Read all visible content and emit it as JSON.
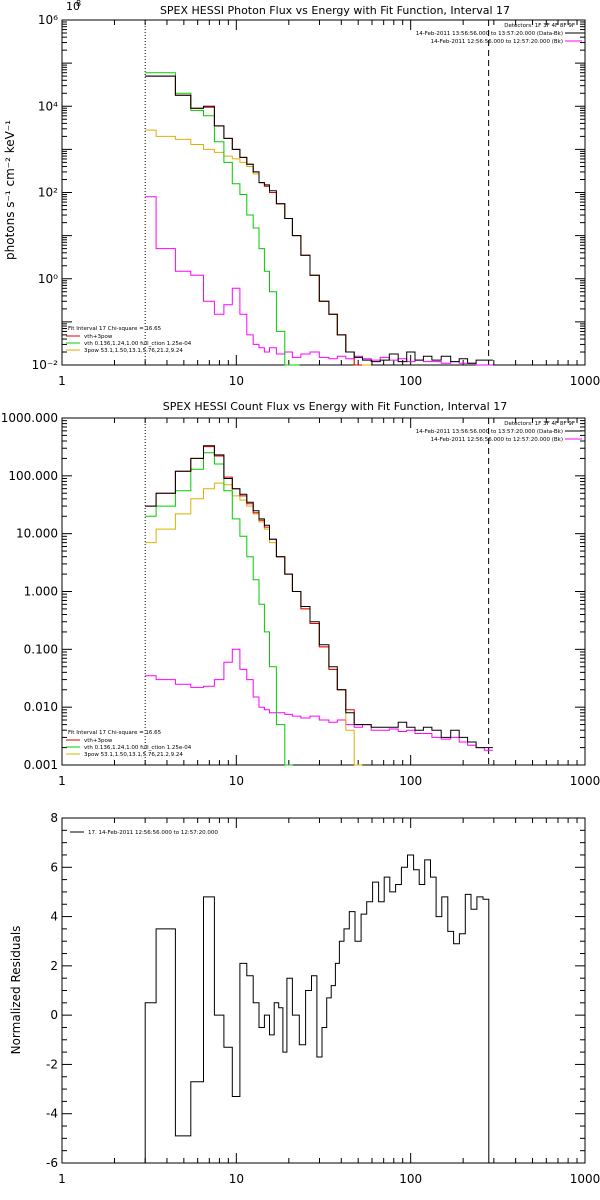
{
  "chart_data": [
    {
      "type": "line",
      "title": "SPEX HESSI Photon Flux vs Energy with Fit Function, Interval 17",
      "xlabel": "",
      "ylabel": "photons s⁻¹ cm⁻² keV⁻¹",
      "xscale": "log",
      "yscale": "log",
      "xlim": [
        1,
        1000
      ],
      "ylim": [
        0.01,
        1000000
      ],
      "xtick_labels": [
        "1",
        "10",
        "100",
        "1000"
      ],
      "ytick_values": [
        0.01,
        1,
        100,
        10000,
        1000000
      ],
      "ytick_labels": [
        "10⁻²",
        "10⁰",
        "10²",
        "10⁴",
        "10⁶"
      ],
      "vlines": [
        {
          "x": 3,
          "style": "dotted"
        },
        {
          "x": 280,
          "style": "dashed"
        }
      ],
      "header": [
        {
          "text": "Detectors: 1F 3F 4F 8F 9F",
          "color": "#000000"
        },
        {
          "text": "14-Feb-2011 13:56:56.000 to 13:57:20.000 (Data-Bk)",
          "color": "#000000"
        },
        {
          "text": "14-Feb-2011 12:56:56.000 to 12:57:20.000 (Bk)",
          "color": "#ff00ff"
        }
      ],
      "legend_title": "Fit Interval 17   Chi-square = 16.65",
      "legend": [
        {
          "text": "vth+3pow",
          "color": "#dd0000"
        },
        {
          "text": "vth 0.136,1.24,1.00  full_ction 1.25e-04",
          "color": "#00cc00"
        },
        {
          "text": "3pow 53.1,1.50,13.1,5.76,21.2,9.24",
          "color": "#e0b000"
        }
      ],
      "series": [
        {
          "name": "Data-Bk",
          "color": "#000000",
          "x": [
            3,
            4,
            5,
            6,
            7,
            8,
            9,
            10,
            11,
            12,
            13,
            14,
            15,
            16,
            18,
            20,
            22,
            25,
            28,
            32,
            36,
            40,
            45,
            50,
            56,
            63,
            71,
            80,
            90,
            100,
            112,
            125,
            140,
            160,
            180,
            200,
            225,
            250,
            280
          ],
          "y": [
            50000,
            50000,
            18000,
            9000,
            10000,
            3500,
            1800,
            1000,
            650,
            450,
            300,
            170,
            150,
            110,
            55,
            25,
            10,
            3.5,
            1.2,
            0.3,
            0.15,
            0.05,
            0.02,
            0.015,
            0.013,
            0.012,
            0.013,
            0.018,
            0.012,
            0.02,
            0.013,
            0.016,
            0.013,
            0.016,
            0.012,
            0.014,
            0.011,
            0.013,
            0.013
          ]
        },
        {
          "name": "vth+3pow",
          "color": "#dd0000",
          "x": [
            3,
            4,
            5,
            6,
            7,
            8,
            9,
            10,
            11,
            12,
            13,
            14,
            15,
            16,
            18,
            20,
            22,
            25,
            28,
            32,
            36,
            40,
            45,
            50
          ],
          "y": [
            50000,
            50000,
            18000,
            9000,
            9500,
            3500,
            1800,
            1000,
            650,
            450,
            300,
            170,
            140,
            100,
            55,
            25,
            10,
            3.5,
            1.2,
            0.3,
            0.15,
            0.05,
            0.02,
            0.01
          ]
        },
        {
          "name": "vth",
          "color": "#00cc00",
          "x": [
            3,
            4,
            5,
            6,
            7,
            8,
            9,
            10,
            11,
            12,
            13,
            14,
            15,
            16,
            18,
            20,
            22
          ],
          "y": [
            60000,
            60000,
            20000,
            8000,
            6000,
            1500,
            500,
            160,
            90,
            30,
            15,
            5,
            1.5,
            0.5,
            0.06,
            0.01,
            0.01
          ]
        },
        {
          "name": "3pow",
          "color": "#e0b000",
          "x": [
            3,
            4,
            5,
            6,
            7,
            8,
            9,
            10,
            11,
            12,
            13,
            14,
            15,
            16,
            18,
            20,
            22,
            25,
            28,
            32,
            36,
            40,
            45,
            50,
            56
          ],
          "y": [
            2800,
            2000,
            1700,
            1300,
            1000,
            850,
            700,
            600,
            500,
            400,
            270,
            170,
            140,
            100,
            55,
            25,
            10,
            3.5,
            1.2,
            0.3,
            0.15,
            0.05,
            0.02,
            0.01,
            0.01
          ]
        },
        {
          "name": "Bk",
          "color": "#ff00ff",
          "x": [
            3,
            4,
            5,
            6,
            7,
            8,
            9,
            10,
            11,
            12,
            13,
            14,
            15,
            16,
            18,
            20,
            22,
            25,
            28,
            32,
            36,
            40,
            45,
            50,
            56,
            63,
            71,
            80,
            90,
            100,
            112,
            125,
            140,
            160,
            180,
            200,
            225,
            250,
            280
          ],
          "y": [
            80,
            5,
            1.5,
            1.2,
            0.3,
            0.15,
            0.25,
            0.6,
            0.15,
            0.05,
            0.03,
            0.025,
            0.02,
            0.025,
            0.018,
            0.02,
            0.015,
            0.018,
            0.02,
            0.015,
            0.014,
            0.016,
            0.014,
            0.016,
            0.014,
            0.013,
            0.015,
            0.013,
            0.014,
            0.012,
            0.013,
            0.012,
            0.012,
            0.011,
            0.012,
            0.011,
            0.011,
            0.01,
            0.01
          ]
        }
      ]
    },
    {
      "type": "line",
      "title": "SPEX HESSI Count Flux vs Energy with Fit Function, Interval 17",
      "xlabel": "",
      "ylabel": "",
      "xscale": "log",
      "yscale": "log",
      "xlim": [
        1,
        1000
      ],
      "ylim": [
        0.001,
        1000
      ],
      "xtick_labels": [
        "1",
        "10",
        "100",
        "1000"
      ],
      "ytick_values": [
        0.001,
        0.01,
        0.1,
        1,
        10,
        100,
        1000
      ],
      "ytick_labels": [
        "0.001",
        "0.010",
        "0.100",
        "1.000",
        "10.000",
        "100.000",
        "1000.000"
      ],
      "vlines": [
        {
          "x": 3,
          "style": "dotted"
        },
        {
          "x": 280,
          "style": "dashed"
        }
      ],
      "header": [
        {
          "text": "Detectors: 1F 3F 4F 8F 9F",
          "color": "#000000"
        },
        {
          "text": "14-Feb-2011 13:56:56.000 to 13:57:20.000 (Data-Bk)",
          "color": "#000000"
        },
        {
          "text": "14-Feb-2011 12:56:56.000 to 12:57:20.000 (Bk)",
          "color": "#ff00ff"
        }
      ],
      "legend_title": "Fit Interval 17   Chi-square = 16.65",
      "legend": [
        {
          "text": "vth+3pow",
          "color": "#dd0000"
        },
        {
          "text": "vth 0.136,1.24,1.00  full_ction 1.25e-04",
          "color": "#00cc00"
        },
        {
          "text": "3pow 53.1,1.50,13.1,5.76,21.2,9.24",
          "color": "#e0b000"
        }
      ],
      "series": [
        {
          "name": "Data-Bk",
          "color": "#000000",
          "x": [
            3,
            4,
            5,
            6,
            7,
            8,
            9,
            10,
            11,
            12,
            13,
            14,
            15,
            16,
            18,
            20,
            22,
            25,
            28,
            32,
            36,
            40,
            45,
            50,
            56,
            63,
            71,
            80,
            90,
            100,
            112,
            125,
            140,
            160,
            180,
            200,
            225,
            250,
            280
          ],
          "y": [
            30,
            50,
            120,
            200,
            330,
            230,
            90,
            60,
            48,
            35,
            25,
            18,
            14,
            8,
            4,
            2,
            1,
            0.55,
            0.3,
            0.12,
            0.05,
            0.02,
            0.008,
            0.005,
            0.005,
            0.0045,
            0.0045,
            0.0045,
            0.0055,
            0.0045,
            0.004,
            0.0045,
            0.004,
            0.003,
            0.004,
            0.003,
            0.0025,
            0.002,
            0.002
          ]
        },
        {
          "name": "vth+3pow",
          "color": "#dd0000",
          "x": [
            3,
            4,
            5,
            6,
            7,
            8,
            9,
            10,
            11,
            12,
            13,
            14,
            15,
            16,
            18,
            20,
            22,
            25,
            28,
            32,
            36,
            40,
            45,
            50
          ],
          "y": [
            30,
            50,
            120,
            200,
            320,
            220,
            95,
            60,
            45,
            33,
            23,
            17,
            13,
            8,
            4,
            2,
            1,
            0.5,
            0.28,
            0.11,
            0.045,
            0.02,
            0.009,
            0.005
          ]
        },
        {
          "name": "vth",
          "color": "#00cc00",
          "x": [
            3,
            4,
            5,
            6,
            7,
            8,
            9,
            10,
            11,
            12,
            13,
            14,
            15,
            16,
            18,
            20
          ],
          "y": [
            20,
            30,
            55,
            130,
            250,
            160,
            55,
            18,
            9,
            4,
            1.6,
            0.6,
            0.2,
            0.05,
            0.005,
            0.001
          ]
        },
        {
          "name": "3pow",
          "color": "#e0b000",
          "x": [
            3,
            4,
            5,
            6,
            7,
            8,
            9,
            10,
            11,
            12,
            13,
            14,
            15,
            16,
            18,
            20,
            22,
            25,
            28,
            32,
            36,
            40,
            45,
            50
          ],
          "y": [
            7,
            12,
            22,
            40,
            60,
            75,
            70,
            45,
            38,
            30,
            22,
            16,
            12,
            7,
            4,
            2,
            1,
            0.5,
            0.28,
            0.11,
            0.045,
            0.02,
            0.004,
            0.001
          ]
        },
        {
          "name": "Bk",
          "color": "#ff00ff",
          "x": [
            3,
            4,
            5,
            6,
            7,
            8,
            9,
            10,
            11,
            12,
            13,
            14,
            15,
            16,
            18,
            20,
            22,
            25,
            28,
            32,
            36,
            40,
            45,
            50,
            56,
            63,
            71,
            80,
            90,
            100,
            112,
            125,
            140,
            160,
            180,
            200,
            225,
            250,
            280
          ],
          "y": [
            0.035,
            0.03,
            0.025,
            0.022,
            0.023,
            0.03,
            0.06,
            0.1,
            0.045,
            0.03,
            0.015,
            0.01,
            0.009,
            0.008,
            0.008,
            0.0075,
            0.007,
            0.0065,
            0.007,
            0.006,
            0.0055,
            0.006,
            0.005,
            0.0045,
            0.005,
            0.004,
            0.004,
            0.0042,
            0.0038,
            0.004,
            0.0035,
            0.0035,
            0.003,
            0.0028,
            0.003,
            0.0025,
            0.0022,
            0.002,
            0.0018
          ]
        }
      ]
    },
    {
      "type": "line",
      "title": "",
      "xlabel": "",
      "ylabel": "Normalized Residuals",
      "xscale": "log",
      "yscale": "linear",
      "xlim": [
        1,
        1000
      ],
      "ylim": [
        -6,
        8
      ],
      "xtick_labels": [
        "1",
        "10",
        "100",
        "1000"
      ],
      "ytick_values": [
        -6,
        -4,
        -2,
        0,
        2,
        4,
        6,
        8
      ],
      "ytick_labels": [
        "-6",
        "-4",
        "-2",
        "0",
        "2",
        "4",
        "6",
        "8"
      ],
      "vlines": [],
      "header": [],
      "legend_title": "",
      "legend": [
        {
          "text": "17. 14-Feb-2011 12:56:56.000 to 12:57:20.000",
          "color": "#000000"
        }
      ],
      "series": [
        {
          "name": "17. 14-Feb-2011 12:56:56.000 to 12:57:20.000",
          "color": "#000000",
          "x": [
            3,
            4,
            5,
            6,
            7,
            8,
            9,
            10,
            11,
            12,
            13,
            14,
            15,
            16,
            17,
            18,
            19,
            20,
            22,
            24,
            26,
            28,
            30,
            32,
            34,
            36,
            38,
            40,
            43,
            46,
            50,
            54,
            58,
            63,
            68,
            73,
            79,
            85,
            92,
            100,
            108,
            116,
            125,
            135,
            145,
            157,
            170,
            183,
            198,
            214,
            230,
            250,
            270
          ],
          "y": [
            0.5,
            3.5,
            -4.9,
            -2.7,
            4.8,
            0.0,
            -1.3,
            -3.3,
            2.1,
            1.6,
            0.5,
            -0.5,
            0.0,
            -0.8,
            0.5,
            0.3,
            -1.5,
            1.5,
            0.0,
            -1.2,
            1.0,
            1.6,
            -1.7,
            -0.5,
            0.7,
            1.2,
            2.1,
            3.0,
            3.5,
            4.2,
            3.0,
            4.1,
            4.6,
            5.4,
            4.6,
            5.6,
            5.0,
            5.3,
            6.0,
            6.5,
            5.9,
            5.3,
            6.3,
            5.6,
            4.0,
            4.8,
            3.4,
            2.9,
            3.3,
            4.9,
            4.3,
            4.8,
            4.7
          ]
        }
      ]
    }
  ]
}
